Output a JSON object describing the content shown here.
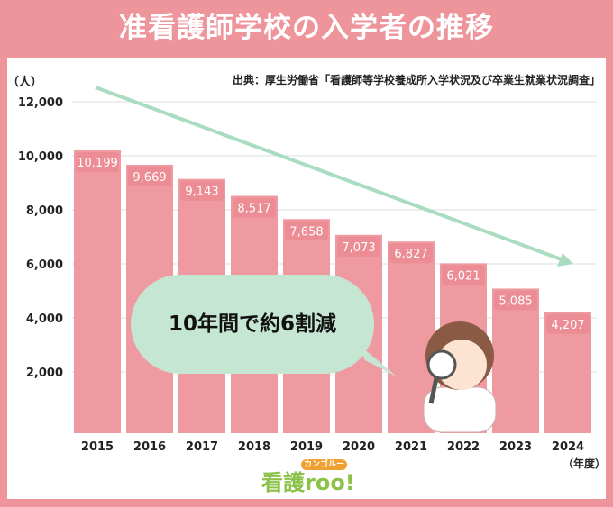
{
  "title": "准看護師学校の入学者の推移",
  "source": "出典：厚生労働省「看護師等学校養成所入学状況及び卒業生就業状況調査」",
  "callout": "10年間で約6割減",
  "logo": {
    "main": "看護roo!",
    "ruby": "カンゴルー"
  },
  "chart_data": {
    "type": "bar",
    "categories": [
      "2015",
      "2016",
      "2017",
      "2018",
      "2019",
      "2020",
      "2021",
      "2022",
      "2023",
      "2024"
    ],
    "values": [
      10199,
      9669,
      9143,
      8517,
      7658,
      7073,
      6827,
      6021,
      5085,
      4207
    ],
    "value_labels": [
      "10,199",
      "9,669",
      "9,143",
      "8,517",
      "7,658",
      "7,073",
      "6,827",
      "6,021",
      "5,085",
      "4,207"
    ],
    "ylabel": "（人）",
    "xlabel": "（年度）",
    "ylim": [
      0,
      12000
    ],
    "yticks": [
      2000,
      4000,
      6000,
      8000,
      10000,
      12000
    ],
    "ytick_labels": [
      "2,000",
      "4,000",
      "6,000",
      "8,000",
      "10,000",
      "12,000"
    ],
    "grid": true,
    "colors": {
      "bar": "#ee9aa0",
      "label_bg": "#ec8c94",
      "arrow": "#a9dcc0"
    }
  }
}
